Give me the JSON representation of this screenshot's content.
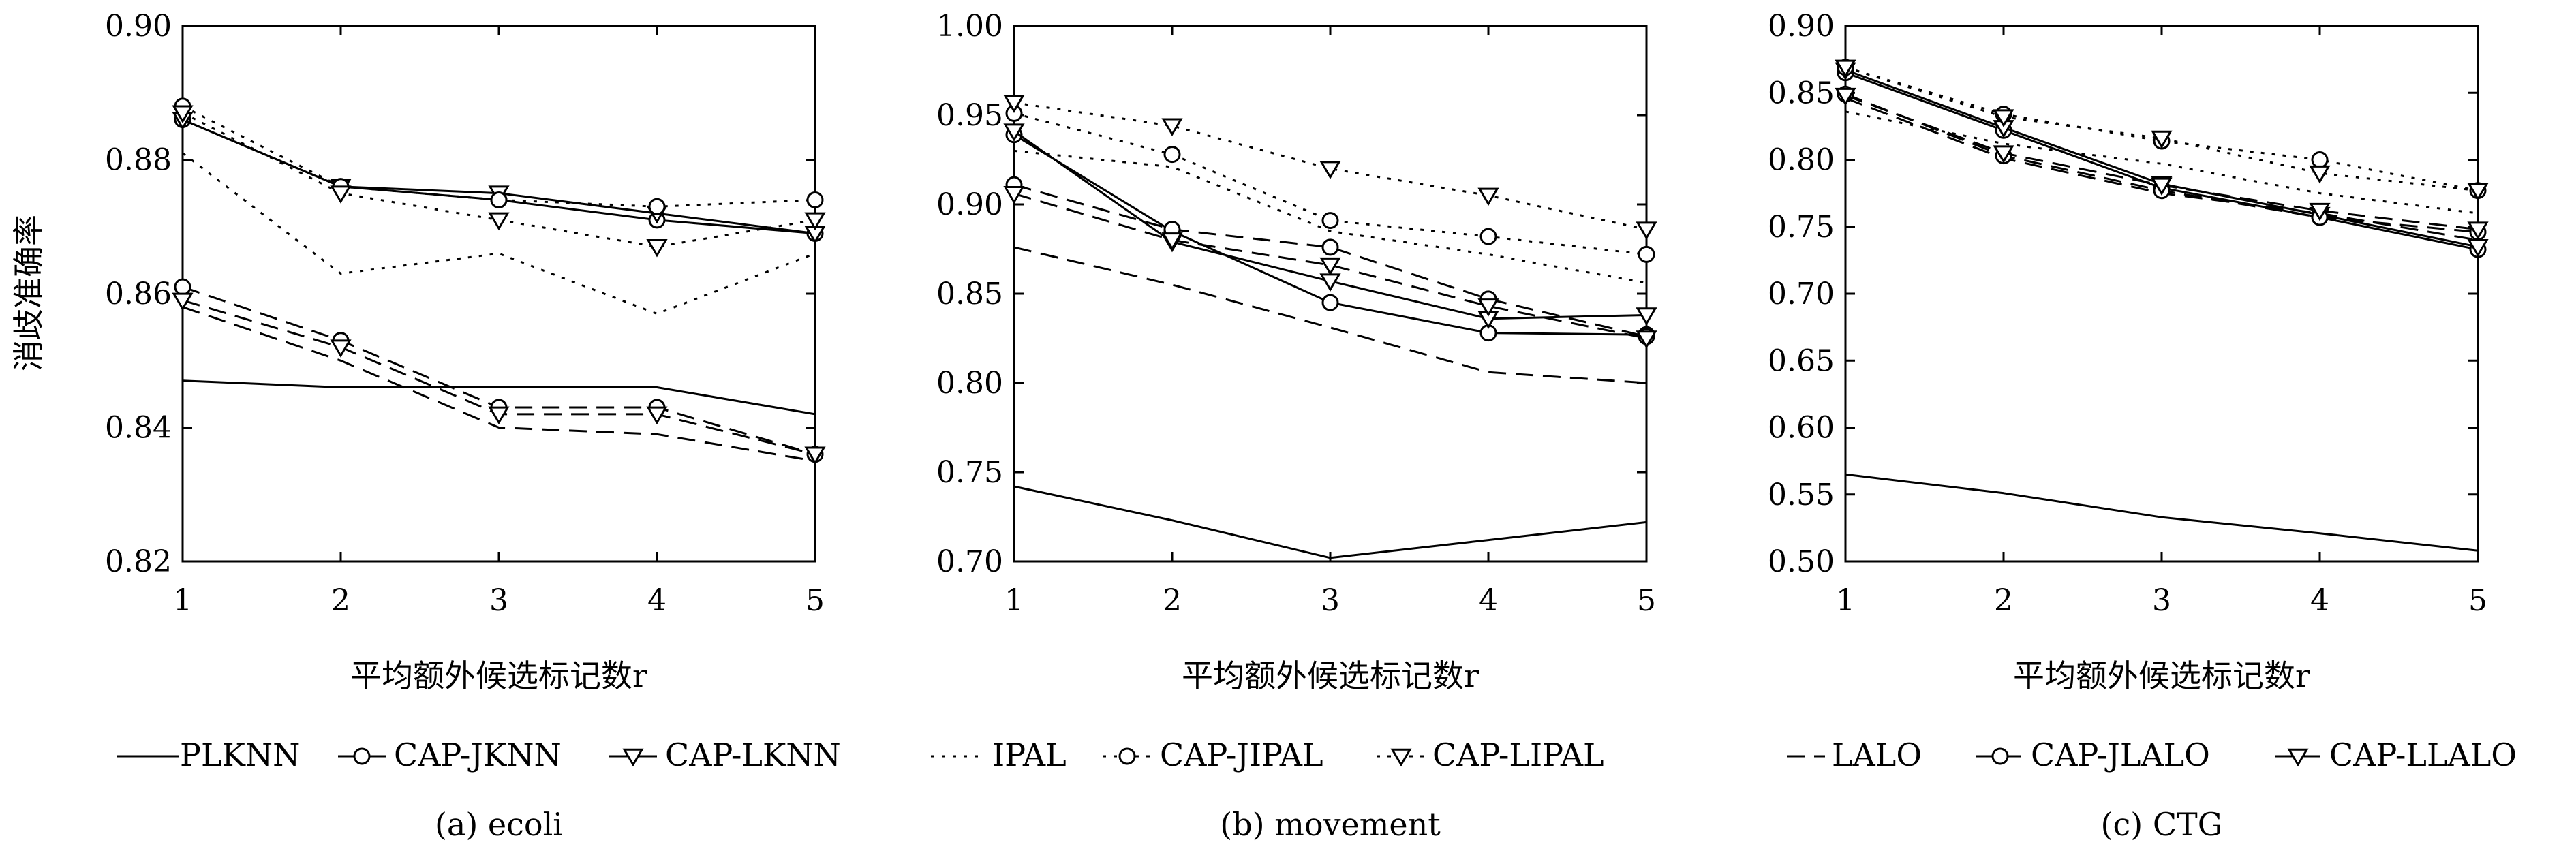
{
  "y_axis_label": "消歧准确率",
  "legend": [
    {
      "label": "PLKNN",
      "style": "solid",
      "marker": "none"
    },
    {
      "label": "CAP-JKNN",
      "style": "solid",
      "marker": "circle"
    },
    {
      "label": "CAP-LKNN",
      "style": "solid",
      "marker": "triangle"
    },
    {
      "label": "IPAL",
      "style": "dotted",
      "marker": "none"
    },
    {
      "label": "CAP-JIPAL",
      "style": "dotted",
      "marker": "circle"
    },
    {
      "label": "CAP-LIPAL",
      "style": "dotted",
      "marker": "triangle"
    },
    {
      "label": "LALO",
      "style": "dashed",
      "marker": "none"
    },
    {
      "label": "CAP-JLALO",
      "style": "dashed",
      "marker": "circle"
    },
    {
      "label": "CAP-LLALO",
      "style": "dashed",
      "marker": "triangle"
    }
  ],
  "chart_data": [
    {
      "type": "line",
      "caption": "(a) ecoli",
      "xlabel": "平均额外候选标记数r",
      "x": [
        1,
        2,
        3,
        4,
        5
      ],
      "xticks": [
        "1",
        "2",
        "3",
        "4",
        "5"
      ],
      "ylim": [
        0.82,
        0.9
      ],
      "yticks": [
        "0.82",
        "0.84",
        "0.86",
        "0.88",
        "0.90"
      ],
      "grid": false,
      "series": [
        {
          "name": "PLKNN",
          "style": "solid",
          "marker": "none",
          "values": [
            0.847,
            0.846,
            0.846,
            0.846,
            0.842
          ]
        },
        {
          "name": "CAP-JKNN",
          "style": "solid",
          "marker": "circle",
          "values": [
            0.886,
            0.876,
            0.874,
            0.871,
            0.869
          ]
        },
        {
          "name": "CAP-LKNN",
          "style": "solid",
          "marker": "triangle",
          "values": [
            0.886,
            0.876,
            0.875,
            0.872,
            0.869
          ]
        },
        {
          "name": "IPAL",
          "style": "dotted",
          "marker": "none",
          "values": [
            0.881,
            0.863,
            0.866,
            0.857,
            0.866
          ]
        },
        {
          "name": "CAP-JIPAL",
          "style": "dotted",
          "marker": "circle",
          "values": [
            0.888,
            0.876,
            0.874,
            0.873,
            0.874
          ]
        },
        {
          "name": "CAP-LIPAL",
          "style": "dotted",
          "marker": "triangle",
          "values": [
            0.887,
            0.875,
            0.871,
            0.867,
            0.871
          ]
        },
        {
          "name": "LALO",
          "style": "dashed",
          "marker": "none",
          "values": [
            0.858,
            0.85,
            0.84,
            0.839,
            0.835
          ]
        },
        {
          "name": "CAP-JLALO",
          "style": "dashed",
          "marker": "circle",
          "values": [
            0.861,
            0.853,
            0.843,
            0.843,
            0.836
          ]
        },
        {
          "name": "CAP-LLALO",
          "style": "dashed",
          "marker": "triangle",
          "values": [
            0.859,
            0.852,
            0.842,
            0.842,
            0.836
          ]
        }
      ]
    },
    {
      "type": "line",
      "caption": "(b) movement",
      "xlabel": "平均额外候选标记数r",
      "x": [
        1,
        2,
        3,
        4,
        5
      ],
      "xticks": [
        "1",
        "2",
        "3",
        "4",
        "5"
      ],
      "ylim": [
        0.7,
        1.0
      ],
      "yticks": [
        "0.70",
        "0.75",
        "0.80",
        "0.85",
        "0.90",
        "0.95",
        "1.00"
      ],
      "grid": false,
      "series": [
        {
          "name": "PLKNN",
          "style": "solid",
          "marker": "none",
          "values": [
            0.742,
            0.723,
            0.702,
            0.712,
            0.722
          ]
        },
        {
          "name": "CAP-JKNN",
          "style": "solid",
          "marker": "circle",
          "values": [
            0.939,
            0.885,
            0.845,
            0.828,
            0.827
          ]
        },
        {
          "name": "CAP-LKNN",
          "style": "solid",
          "marker": "triangle",
          "values": [
            0.941,
            0.879,
            0.857,
            0.836,
            0.838
          ]
        },
        {
          "name": "IPAL",
          "style": "dotted",
          "marker": "none",
          "values": [
            0.93,
            0.921,
            0.885,
            0.872,
            0.856
          ]
        },
        {
          "name": "CAP-JIPAL",
          "style": "dotted",
          "marker": "circle",
          "values": [
            0.951,
            0.928,
            0.891,
            0.882,
            0.872
          ]
        },
        {
          "name": "CAP-LIPAL",
          "style": "dotted",
          "marker": "triangle",
          "values": [
            0.957,
            0.944,
            0.92,
            0.905,
            0.886
          ]
        },
        {
          "name": "LALO",
          "style": "dashed",
          "marker": "none",
          "values": [
            0.876,
            0.855,
            0.831,
            0.806,
            0.8
          ]
        },
        {
          "name": "CAP-JLALO",
          "style": "dashed",
          "marker": "circle",
          "values": [
            0.911,
            0.886,
            0.876,
            0.847,
            0.826
          ]
        },
        {
          "name": "CAP-LLALO",
          "style": "dashed",
          "marker": "triangle",
          "values": [
            0.906,
            0.88,
            0.866,
            0.843,
            0.825
          ]
        }
      ]
    },
    {
      "type": "line",
      "caption": "(c) CTG",
      "xlabel": "平均额外候选标记数r",
      "x": [
        1,
        2,
        3,
        4,
        5
      ],
      "xticks": [
        "1",
        "2",
        "3",
        "4",
        "5"
      ],
      "ylim": [
        0.5,
        0.9
      ],
      "yticks": [
        "0.50",
        "0.55",
        "0.60",
        "0.65",
        "0.70",
        "0.75",
        "0.80",
        "0.85",
        "0.90"
      ],
      "grid": false,
      "series": [
        {
          "name": "PLKNN",
          "style": "solid",
          "marker": "none",
          "values": [
            0.565,
            0.551,
            0.533,
            0.521,
            0.508
          ]
        },
        {
          "name": "CAP-JKNN",
          "style": "solid",
          "marker": "circle",
          "values": [
            0.865,
            0.822,
            0.779,
            0.757,
            0.733
          ]
        },
        {
          "name": "CAP-LKNN",
          "style": "solid",
          "marker": "triangle",
          "values": [
            0.867,
            0.824,
            0.782,
            0.759,
            0.735
          ]
        },
        {
          "name": "IPAL",
          "style": "dotted",
          "marker": "none",
          "values": [
            0.836,
            0.812,
            0.797,
            0.775,
            0.76
          ]
        },
        {
          "name": "CAP-JIPAL",
          "style": "dotted",
          "marker": "circle",
          "values": [
            0.869,
            0.834,
            0.814,
            0.8,
            0.777
          ]
        },
        {
          "name": "CAP-LIPAL",
          "style": "dotted",
          "marker": "triangle",
          "values": [
            0.869,
            0.832,
            0.816,
            0.79,
            0.777
          ]
        },
        {
          "name": "LALO",
          "style": "dashed",
          "marker": "none",
          "values": [
            0.846,
            0.801,
            0.775,
            0.76,
            0.74
          ]
        },
        {
          "name": "CAP-JLALO",
          "style": "dashed",
          "marker": "circle",
          "values": [
            0.849,
            0.803,
            0.777,
            0.757,
            0.746
          ]
        },
        {
          "name": "CAP-LLALO",
          "style": "dashed",
          "marker": "triangle",
          "values": [
            0.848,
            0.805,
            0.781,
            0.762,
            0.748
          ]
        }
      ]
    }
  ]
}
